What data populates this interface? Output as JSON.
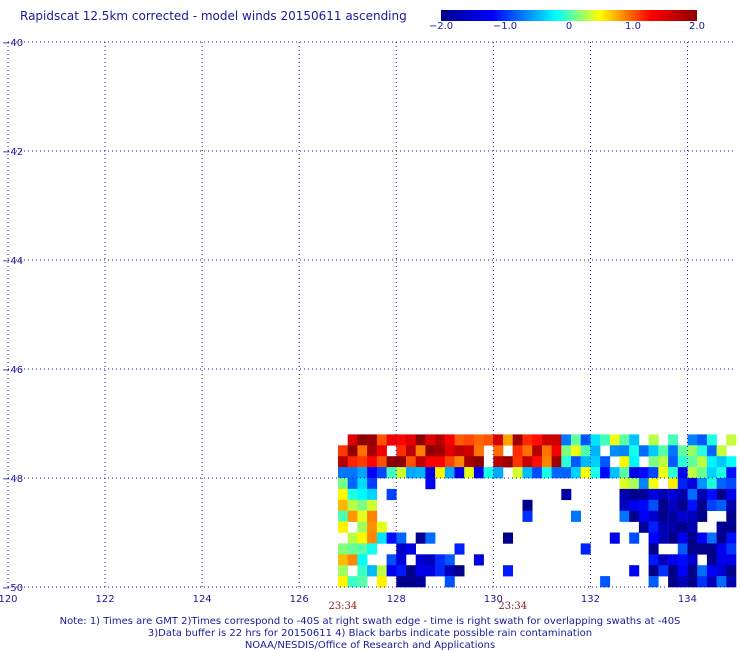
{
  "chart_data": {
    "type": "heatmap",
    "title": "Rapidscat 12.5km corrected - model winds 20150611 ascending",
    "xlim": [
      120,
      135
    ],
    "ylim": [
      -50,
      -40
    ],
    "x_ticks": [
      "120",
      "122",
      "124",
      "126",
      "128",
      "130",
      "132",
      "134"
    ],
    "y_ticks": [
      "-40",
      "-42",
      "-44",
      "-46",
      "-48",
      "-50"
    ],
    "grid": true,
    "colorbar": {
      "range": [
        -2.0,
        2.0
      ],
      "tick_labels": [
        "-2.0",
        "-1.0",
        "0",
        "1.0",
        "2.0"
      ],
      "colors": [
        "#00008b",
        "#0000ff",
        "#00ffff",
        "#ffff00",
        "#ff0000",
        "#8b0000"
      ]
    },
    "time_labels": [
      {
        "x": 126.9,
        "label": "23:34"
      },
      {
        "x": 130.4,
        "label": "23:34"
      }
    ],
    "swath": {
      "lon_min": 126.8,
      "lon_max": 135.0,
      "lat_max": -47.2,
      "lat_min": -50.0
    }
  },
  "notes": {
    "line1": "Note: 1) Times are GMT 2)Times correspond to -40S at right swath edge - time is right swath for overlapping swaths at -40S",
    "line2": "3)Data buffer is 22 hrs for 20150611 4) Black barbs indicate possible rain contamination",
    "line3": "NOAA/NESDIS/Office of Research and Applications"
  }
}
